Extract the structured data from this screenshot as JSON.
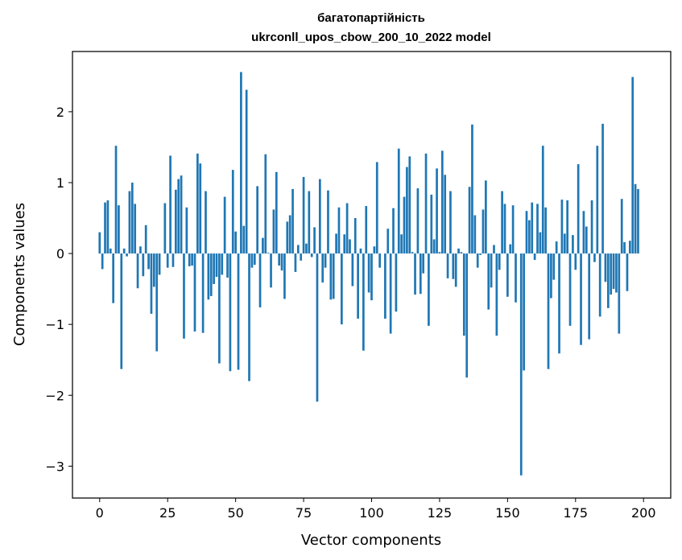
{
  "chart_data": {
    "type": "bar",
    "title": "багатопартійність",
    "subtitle": "ukrconll_upos_cbow_200_10_2022 model",
    "xlabel": "Vector components",
    "ylabel": "Components values",
    "xlim": [
      -10,
      210
    ],
    "ylim": [
      -3.45,
      2.85
    ],
    "xticks": [
      0,
      25,
      50,
      75,
      100,
      125,
      150,
      175,
      200
    ],
    "xtick_labels": [
      "0",
      "25",
      "50",
      "75",
      "100",
      "125",
      "150",
      "175",
      "200"
    ],
    "yticks": [
      -3,
      -2,
      -1,
      0,
      1,
      2
    ],
    "ytick_labels": [
      "−3",
      "−2",
      "−1",
      "0",
      "1",
      "2"
    ],
    "grid": false,
    "bar_color": "#1f77b4",
    "values": [
      0.3,
      -0.22,
      0.72,
      0.75,
      0.07,
      -0.7,
      1.52,
      0.68,
      -1.63,
      0.07,
      -0.04,
      0.88,
      1.0,
      0.7,
      -0.49,
      0.1,
      -0.32,
      0.4,
      -0.22,
      -0.85,
      -0.47,
      -1.38,
      -0.3,
      0.0,
      0.71,
      -0.2,
      1.38,
      -0.19,
      0.9,
      1.05,
      1.1,
      -1.2,
      0.65,
      -0.18,
      -0.17,
      -1.1,
      1.41,
      1.27,
      -1.12,
      0.88,
      -0.65,
      -0.6,
      -0.43,
      -0.33,
      -1.55,
      -0.3,
      0.8,
      -0.34,
      -1.66,
      1.18,
      0.31,
      -1.64,
      2.56,
      0.39,
      2.31,
      -1.8,
      -0.2,
      -0.16,
      0.95,
      -0.76,
      0.22,
      1.4,
      0.01,
      -0.48,
      0.62,
      1.15,
      -0.17,
      -0.24,
      -0.64,
      0.45,
      0.54,
      0.91,
      -0.26,
      0.12,
      -0.1,
      1.08,
      0.14,
      0.88,
      -0.05,
      0.37,
      -2.09,
      1.05,
      -0.41,
      -0.2,
      0.89,
      -0.65,
      -0.64,
      0.28,
      0.65,
      -1.0,
      0.27,
      0.71,
      0.2,
      -0.46,
      0.5,
      -0.92,
      0.07,
      -1.37,
      0.67,
      -0.55,
      -0.66,
      0.1,
      1.29,
      -0.2,
      0.0,
      -0.92,
      0.35,
      -1.13,
      0.64,
      -0.82,
      1.48,
      0.27,
      0.8,
      1.22,
      1.37,
      0.02,
      -0.58,
      0.92,
      -0.57,
      -0.28,
      1.41,
      -1.02,
      0.83,
      0.2,
      1.2,
      0.02,
      1.45,
      1.11,
      -0.35,
      0.88,
      -0.36,
      -0.47,
      0.07,
      0.02,
      -1.16,
      -1.75,
      0.94,
      1.82,
      0.54,
      -0.2,
      -0.02,
      0.62,
      1.03,
      -0.79,
      -0.48,
      0.12,
      -1.16,
      -0.23,
      0.88,
      0.7,
      -0.61,
      0.13,
      0.68,
      -0.69,
      0.0,
      -3.13,
      -1.65,
      0.6,
      0.47,
      0.72,
      -0.09,
      0.7,
      0.3,
      1.52,
      0.65,
      -1.63,
      -0.63,
      -0.37,
      0.17,
      -1.41,
      0.76,
      0.28,
      0.75,
      -1.02,
      0.26,
      -0.23,
      1.26,
      -1.29,
      0.6,
      0.38,
      -1.21,
      0.75,
      -0.12,
      1.52,
      -0.89,
      1.83,
      -0.4,
      -0.77,
      -0.58,
      -0.5,
      -0.55,
      -1.13,
      0.77,
      0.16,
      -0.53,
      0.18,
      2.49,
      0.98,
      0.91
    ]
  }
}
